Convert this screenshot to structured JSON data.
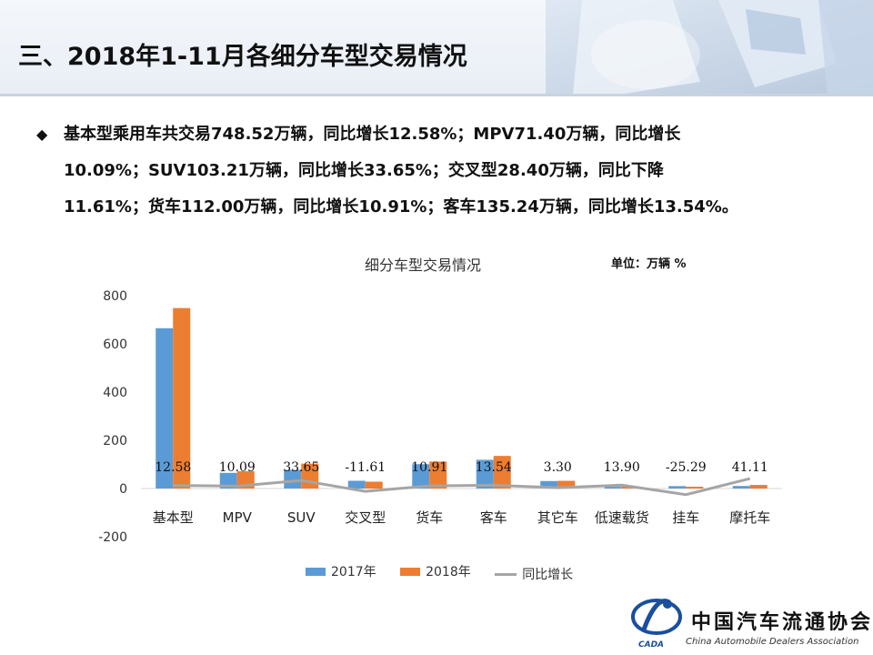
{
  "header": {
    "title": "三、2018年1-11月各细分车型交易情况"
  },
  "summary": {
    "line1": "基本型乘用车共交易748.52万辆，同比增长12.58%；MPV71.40万辆，同比增长",
    "line2": "10.09%；SUV103.21万辆，同比增长33.65%；交叉型28.40万辆，同比下降",
    "line3": "11.61%；货车112.00万辆，同比增长10.91%；客车135.24万辆，同比增长13.54%。"
  },
  "colors": {
    "series2017": "#5b9bd5",
    "series2018": "#ed7d31",
    "growth": "#a5a5a5"
  },
  "chart_data": {
    "type": "bar",
    "title": "细分车型交易情况",
    "unit": "单位：万辆  %",
    "categories": [
      "基本型",
      "MPV",
      "SUV",
      "交叉型",
      "货车",
      "客车",
      "其它车",
      "低速载货",
      "挂车",
      "摩托车"
    ],
    "series": [
      {
        "name": "2017年",
        "type": "bar",
        "values": [
          664.9,
          64.9,
          77.2,
          32.1,
          101.0,
          119.1,
          31.0,
          7.0,
          10.0,
          10.5
        ]
      },
      {
        "name": "2018年",
        "type": "bar",
        "values": [
          748.52,
          71.4,
          103.21,
          28.4,
          112.0,
          135.24,
          32.0,
          8.0,
          7.5,
          14.8
        ]
      },
      {
        "name": "同比增长",
        "type": "line",
        "values": [
          12.58,
          10.09,
          33.65,
          -11.61,
          10.91,
          13.54,
          3.3,
          13.9,
          -25.29,
          41.11
        ]
      }
    ],
    "growth_labels": [
      "12.58",
      "10.09",
      "33.65",
      "-11.61",
      "10.91",
      "13.54",
      "3.30",
      "13.90",
      "-25.29",
      "41.11"
    ],
    "yticks": [
      "800",
      "600",
      "400",
      "200",
      "0",
      "-200"
    ],
    "ylim": [
      -200,
      800
    ],
    "legend_position": "bottom",
    "grid": false
  },
  "logo": {
    "name": "中国汽车流通协会",
    "subtitle": "China Automobile Dealers Association",
    "abbr": "CADA"
  }
}
